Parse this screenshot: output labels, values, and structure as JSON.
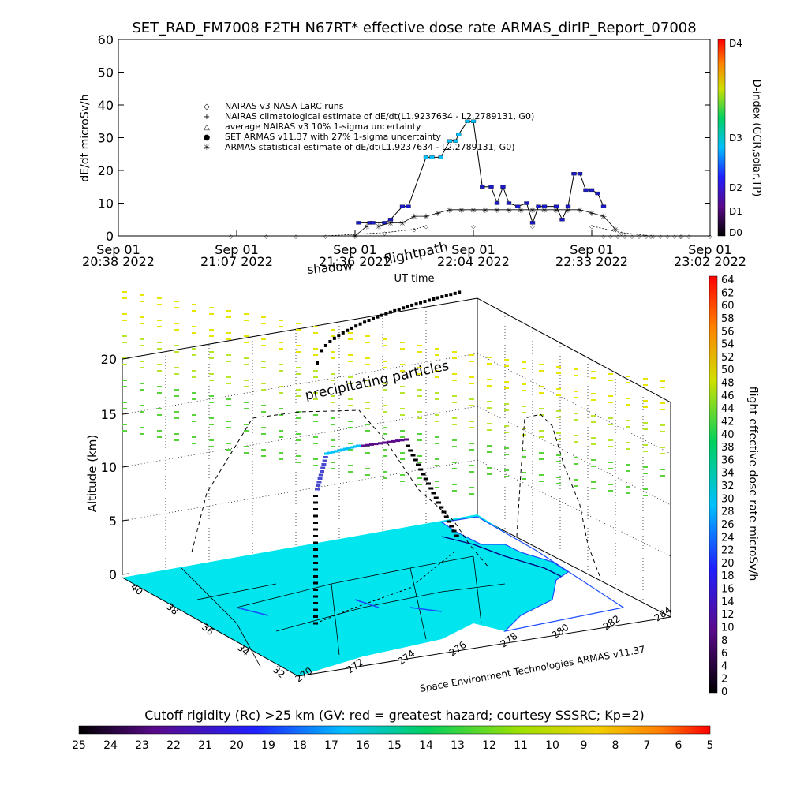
{
  "title": "SET_RAD_FM7008   F2TH N67RT* effective dose rate ARMAS_dirIP_Report_07008",
  "chart_data": [
    {
      "type": "line",
      "ylabel": "dE/dt microSv/h",
      "xlabel": "UT time",
      "ylim": [
        0,
        60
      ],
      "yticks": [
        "0",
        "10",
        "20",
        "30",
        "40",
        "50",
        "60"
      ],
      "xticks": [
        {
          "date": "Sep 01",
          "time": "20:38 2022"
        },
        {
          "date": "Sep 01",
          "time": "21:07 2022"
        },
        {
          "date": "Sep 01",
          "time": "21:36 2022"
        },
        {
          "date": "Sep 01",
          "time": "22:04 2022"
        },
        {
          "date": "Sep 01",
          "time": "22:33 2022"
        },
        {
          "date": "Sep 01",
          "time": "23:02 2022"
        }
      ],
      "legend": [
        {
          "symbol": "◇",
          "label": "NAIRAS v3 NASA LaRC runs"
        },
        {
          "symbol": "+",
          "label": "NAIRAS climatological estimate of dE/dt(L1.9237634 - L2.2789131, G0)"
        },
        {
          "symbol": "△",
          "label": "average NAIRAS v3 10% 1-sigma uncertainty"
        },
        {
          "symbol": "●",
          "label": "SET ARMAS v11.37 with 27% 1-sigma uncertainty"
        },
        {
          "symbol": "✳",
          "label": "ARMAS statistical estimate of dE/dt(L1.9237634 - L2.2789131, G0)"
        }
      ],
      "legend_position": "top-left",
      "series": [
        {
          "name": "SET ARMAS v11.37 with 27% 1-sigma uncertainty",
          "x": [
            0.406,
            0.425,
            0.43,
            0.45,
            0.46,
            0.48,
            0.49,
            0.52,
            0.53,
            0.545,
            0.56,
            0.57,
            0.575,
            0.59,
            0.6,
            0.615,
            0.63,
            0.64,
            0.65,
            0.66,
            0.675,
            0.69,
            0.7,
            0.71,
            0.72,
            0.74,
            0.75,
            0.76,
            0.77,
            0.78,
            0.79,
            0.8,
            0.81,
            0.82
          ],
          "y": [
            4,
            4,
            4,
            4,
            5,
            9,
            9,
            24,
            24,
            24,
            29,
            29,
            31,
            35,
            35,
            15,
            15,
            10,
            15,
            10,
            9,
            10,
            4,
            9,
            9,
            9,
            5,
            9,
            19,
            19,
            14,
            14,
            13,
            9
          ]
        },
        {
          "name": "ARMAS statistical estimate of dE/dt(L1.9237634 - L2.2789131, G0)",
          "x": [
            0.4,
            0.42,
            0.44,
            0.46,
            0.48,
            0.5,
            0.52,
            0.54,
            0.56,
            0.58,
            0.6,
            0.62,
            0.64,
            0.66,
            0.68,
            0.7,
            0.72,
            0.74,
            0.76,
            0.78,
            0.8,
            0.82,
            0.84
          ],
          "y": [
            0,
            3,
            3,
            4,
            4,
            6,
            6,
            7,
            8,
            8,
            8,
            8,
            8,
            8,
            8,
            8,
            8,
            8,
            8,
            8,
            7,
            6,
            2
          ]
        },
        {
          "name": "NAIRAS v3 NASA LaRC runs",
          "x": [
            0.19,
            0.25,
            0.3,
            0.35,
            0.4,
            0.45,
            0.5,
            0.52,
            0.6,
            0.7,
            0.8,
            0.85,
            0.9,
            0.95,
            1.0
          ],
          "y": [
            0,
            0,
            0,
            0,
            0.5,
            1,
            2,
            3,
            3,
            3,
            3,
            1,
            0,
            0,
            0
          ]
        }
      ],
      "right_axis": {
        "label": "D-index (GCR,solar,TP)",
        "ticks": [
          "D0",
          "D1",
          "D2",
          "D3",
          "D4"
        ]
      }
    },
    {
      "type": "scatter",
      "ylabel": "Altitude (km)",
      "zticks": [
        "0",
        "5",
        "10",
        "15",
        "20"
      ],
      "lat_ticks": [
        "32",
        "34",
        "36",
        "38",
        "40"
      ],
      "lon_ticks": [
        "270",
        "272",
        "274",
        "276",
        "278",
        "280",
        "282",
        "284"
      ],
      "annotations": [
        "flightpath",
        "shadow",
        "precipitating particles",
        "Space Environment Technologies ARMAS v11.37"
      ],
      "colorbar_right": {
        "label": "flight effective dose rate microSv/h",
        "ticks": [
          "0",
          "2",
          "4",
          "6",
          "8",
          "10",
          "12",
          "14",
          "16",
          "18",
          "20",
          "22",
          "24",
          "26",
          "28",
          "30",
          "32",
          "34",
          "36",
          "38",
          "40",
          "42",
          "44",
          "46",
          "48",
          "50",
          "52",
          "54",
          "56",
          "58",
          "60",
          "62",
          "64"
        ]
      },
      "colorbar_bottom": {
        "label": "Cutoff rigidity (Rc) >25 km (GV: red = greatest hazard; courtesy SSSRC; Kp=2)",
        "ticks": [
          "25",
          "24",
          "23",
          "22",
          "21",
          "20",
          "19",
          "18",
          "17",
          "16",
          "15",
          "14",
          "13",
          "12",
          "11",
          "10",
          "9",
          "8",
          "7",
          "6",
          "5"
        ]
      }
    }
  ],
  "colors": {
    "land": "#00e5ee",
    "path": "#000000",
    "armas": "#1a1ac8",
    "precip": "#b8e62e"
  }
}
